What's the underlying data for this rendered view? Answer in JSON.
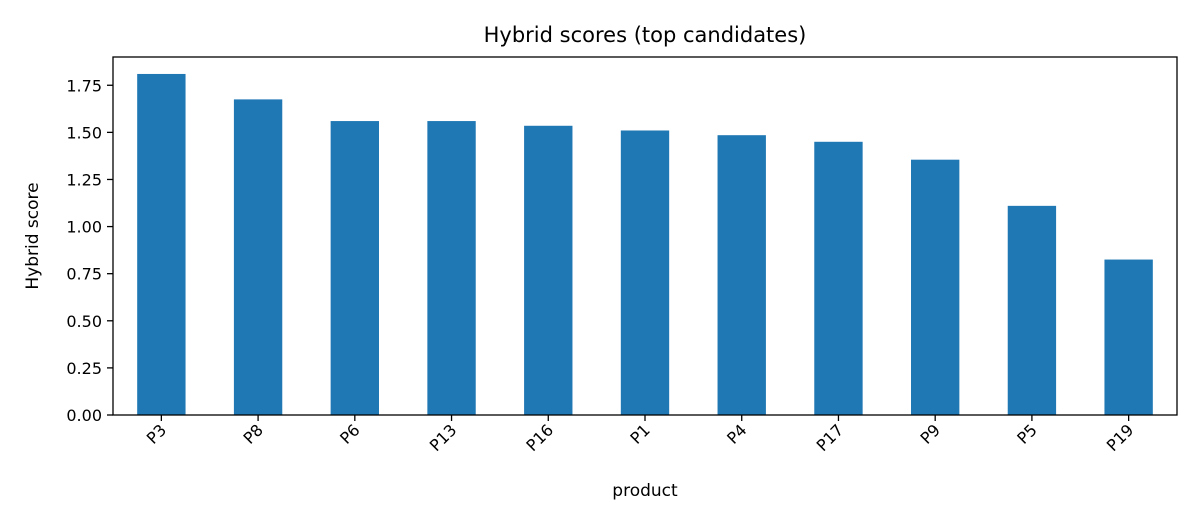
{
  "chart_data": {
    "type": "bar",
    "title": "Hybrid scores (top candidates)",
    "xlabel": "product",
    "ylabel": "Hybrid score",
    "categories": [
      "P3",
      "P8",
      "P6",
      "P13",
      "P16",
      "P1",
      "P4",
      "P17",
      "P9",
      "P5",
      "P19"
    ],
    "values": [
      1.81,
      1.675,
      1.56,
      1.56,
      1.535,
      1.51,
      1.485,
      1.45,
      1.355,
      1.11,
      0.825
    ],
    "ylim": [
      0,
      1.9
    ],
    "yticks": [
      "0.00",
      "0.25",
      "0.50",
      "0.75",
      "1.00",
      "1.25",
      "1.50",
      "1.75"
    ],
    "grid": false,
    "bar_color": "#1f77b4"
  }
}
